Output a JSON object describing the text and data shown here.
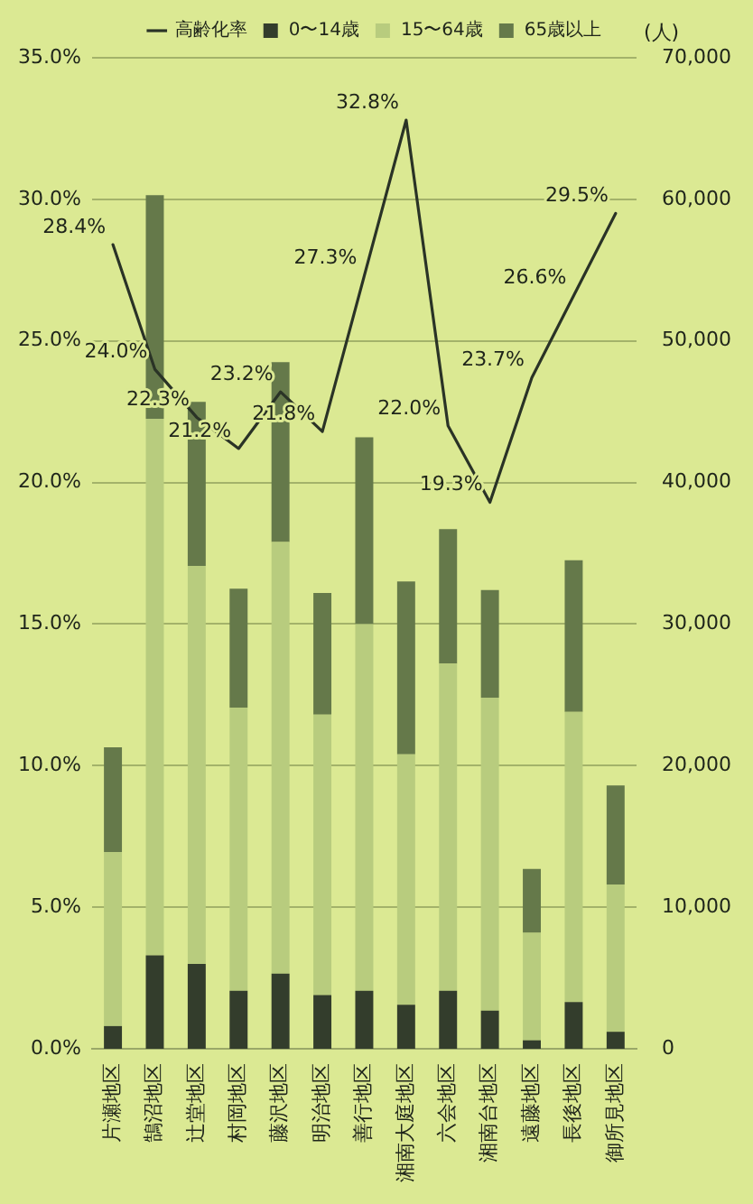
{
  "chart_data": {
    "type": "bar",
    "stacked": true,
    "categories": [
      "片瀬地区",
      "鵠沼地区",
      "辻堂地区",
      "村岡地区",
      "藤沢地区",
      "明治地区",
      "善行地区",
      "湘南大庭地区",
      "六会地区",
      "湘南台地区",
      "遠藤地区",
      "長後地区",
      "御所見地区"
    ],
    "series": [
      {
        "name": "0〜14歳",
        "axis": "y2",
        "color": "#333d2c",
        "values": [
          1600,
          6600,
          6000,
          4100,
          5300,
          3800,
          4100,
          3100,
          4100,
          2700,
          600,
          3300,
          1200
        ]
      },
      {
        "name": "15〜64歳",
        "axis": "y2",
        "color": "#b8cc7e",
        "values": [
          12300,
          37900,
          28100,
          20000,
          30500,
          19800,
          25900,
          17700,
          23100,
          22100,
          7600,
          20500,
          10400
        ]
      },
      {
        "name": "65歳以上",
        "axis": "y2",
        "color": "#65794a",
        "values": [
          7400,
          15800,
          11600,
          8400,
          12700,
          8600,
          13200,
          12200,
          9500,
          7600,
          4500,
          10700,
          7000
        ]
      },
      {
        "name": "高齢化率",
        "type": "line",
        "color": "#2a3326",
        "marker": "none",
        "line_style": "solid",
        "values": [
          28.4,
          24.0,
          22.3,
          21.2,
          23.2,
          21.8,
          27.3,
          32.8,
          22.0,
          19.3,
          23.7,
          26.6,
          29.5
        ],
        "value_labels": [
          "28.4%",
          "24.0%",
          "22.3%",
          "21.2%",
          "23.2%",
          "21.8%",
          "27.3%",
          "32.8%",
          "22.0%",
          "19.3%",
          "23.7%",
          "26.6%",
          "29.5%"
        ]
      }
    ],
    "ylim": [
      0,
      35
    ],
    "yticks": [
      {
        "value": 0,
        "label": "0.0%"
      },
      {
        "value": 5,
        "label": "5.0%"
      },
      {
        "value": 10,
        "label": "10.0%"
      },
      {
        "value": 15,
        "label": "15.0%"
      },
      {
        "value": 20,
        "label": "20.0%"
      },
      {
        "value": 25,
        "label": "25.0%"
      },
      {
        "value": 30,
        "label": "30.0%"
      },
      {
        "value": 35,
        "label": "35.0%"
      }
    ],
    "y2lim": [
      0,
      70000
    ],
    "y2ticks": [
      0,
      {
        "value": 10000,
        "label": "10,000"
      },
      {
        "value": 20000,
        "label": "20,000"
      },
      {
        "value": 30000,
        "label": "30,000"
      },
      {
        "value": 40000,
        "label": "40,000"
      },
      {
        "value": 50000,
        "label": "50,000"
      },
      {
        "value": 60000,
        "label": "60,000"
      },
      {
        "value": 70000,
        "label": "70,000"
      }
    ],
    "y2label": "(人)",
    "grid": "y",
    "legend": "top"
  }
}
